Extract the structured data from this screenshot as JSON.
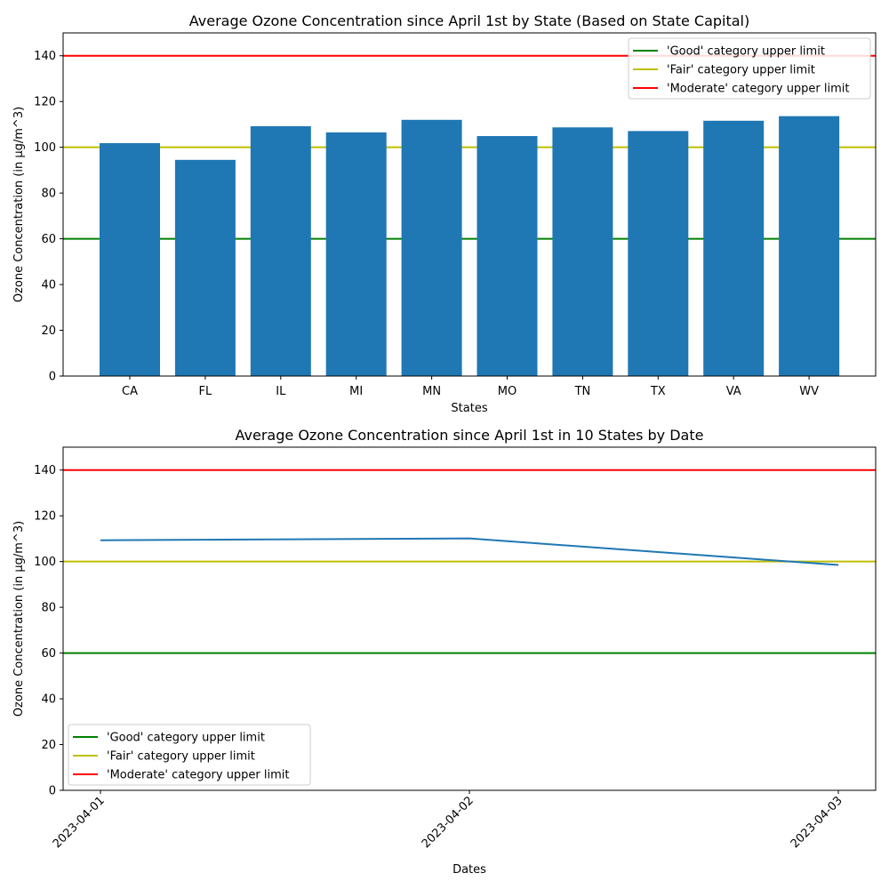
{
  "chart_data": [
    {
      "type": "bar",
      "title": "Average Ozone Concentration since April 1st by State (Based on State Capital)",
      "xlabel": "States",
      "ylabel": "Ozone Concentration (in µg/m^3)",
      "ylim": [
        0,
        150
      ],
      "yticks": [
        0,
        20,
        40,
        60,
        80,
        100,
        120,
        140
      ],
      "categories": [
        "CA",
        "FL",
        "IL",
        "MI",
        "MN",
        "MO",
        "TN",
        "TX",
        "VA",
        "WV"
      ],
      "values": [
        101.8,
        94.5,
        109.2,
        106.5,
        112.0,
        104.9,
        108.7,
        107.1,
        111.6,
        113.6
      ],
      "bar_color": "#1f77b4",
      "grid": false,
      "legend_position": "upper right",
      "reference_lines": [
        {
          "label": "'Good' category upper limit",
          "y": 60,
          "color": "#008000"
        },
        {
          "label": "'Fair' category upper limit",
          "y": 100,
          "color": "#bfbf00"
        },
        {
          "label": "'Moderate' category upper limit",
          "y": 140,
          "color": "#ff0000"
        }
      ]
    },
    {
      "type": "line",
      "title": "Average Ozone Concentration since April 1st in 10 States by Date",
      "xlabel": "Dates",
      "ylabel": "Ozone Concentration (in µg/m^3)",
      "ylim": [
        0,
        150
      ],
      "yticks": [
        0,
        20,
        40,
        60,
        80,
        100,
        120,
        140
      ],
      "x": [
        "2023-04-01",
        "2023-04-02",
        "2023-04-03"
      ],
      "values": [
        109.3,
        110.1,
        98.5
      ],
      "line_color": "#1f77b4",
      "grid": false,
      "legend_position": "lower left",
      "reference_lines": [
        {
          "label": "'Good' category upper limit",
          "y": 60,
          "color": "#008000"
        },
        {
          "label": "'Fair' category upper limit",
          "y": 100,
          "color": "#bfbf00"
        },
        {
          "label": "'Moderate' category upper limit",
          "y": 140,
          "color": "#ff0000"
        }
      ]
    }
  ]
}
